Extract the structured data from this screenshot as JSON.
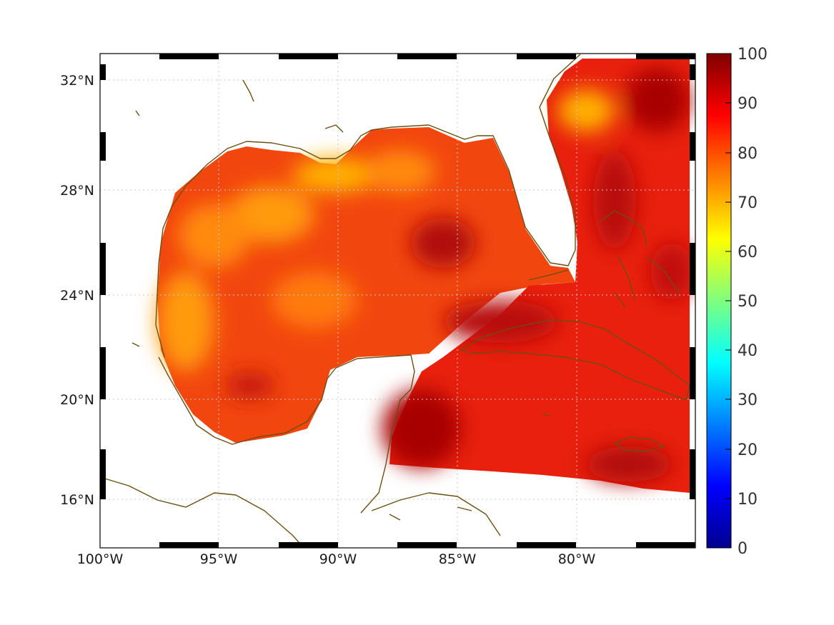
{
  "map": {
    "lat_labels": [
      "32°N",
      "28°N",
      "24°N",
      "20°N",
      "16°N"
    ],
    "lon_labels": [
      "100°W",
      "95°W",
      "90°W",
      "85°W",
      "80°W"
    ],
    "coastline_color": "#6b4f12",
    "grid": "dotted",
    "colormap": "jet"
  },
  "colorbar": {
    "ticks": [
      "100",
      "90",
      "80",
      "70",
      "60",
      "50",
      "40",
      "30",
      "20",
      "10",
      "0"
    ],
    "min": 0,
    "max": 100
  }
}
